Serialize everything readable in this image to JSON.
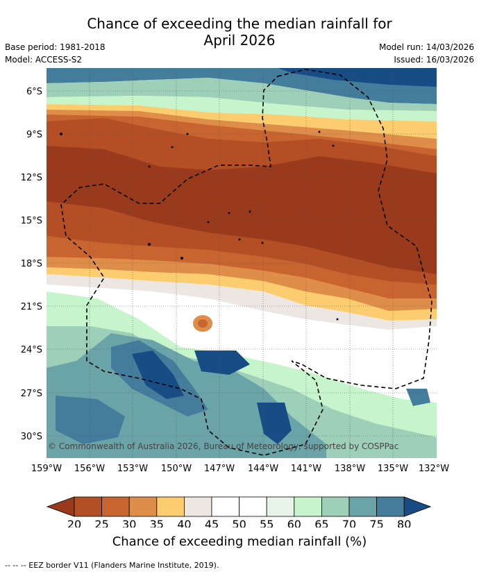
{
  "title_line1": "Chance of exceeding the median rainfall for",
  "title_line2": "April 2026",
  "base_period": "Base period: 1981-2018",
  "model": "Model: ACCESS-S2",
  "model_run": "Model run: 14/03/2026",
  "issued": "Issued: 16/03/2026",
  "copyright": "© Commonwealth of Australia 2026, Bureau of Meteorology, supported by COSPPac",
  "lat_labels": [
    "6°S",
    "9°S",
    "12°S",
    "15°S",
    "18°S",
    "21°S",
    "24°S",
    "27°S",
    "30°S"
  ],
  "lon_labels": [
    "159°W",
    "156°W",
    "153°W",
    "150°W",
    "147°W",
    "144°W",
    "141°W",
    "138°W",
    "135°W",
    "132°W"
  ],
  "colorbar": {
    "ticks": [
      "20",
      "25",
      "30",
      "35",
      "40",
      "45",
      "50",
      "55",
      "60",
      "65",
      "70",
      "75",
      "80"
    ],
    "colors": [
      "#9a3a1c",
      "#b44e25",
      "#c8642f",
      "#de8e48",
      "#fccd6e",
      "#ece7e3",
      "#ffffff",
      "#ffffff",
      "#e8f4e8",
      "#c7f5cb",
      "#9ecfb9",
      "#6aa3a8",
      "#447c9b",
      "#184c85"
    ],
    "label": "Chance of exceeding median rainfall (%)"
  },
  "footer": "--  --  -- EEZ border V11 (Flanders Marine Institute, 2019)."
}
